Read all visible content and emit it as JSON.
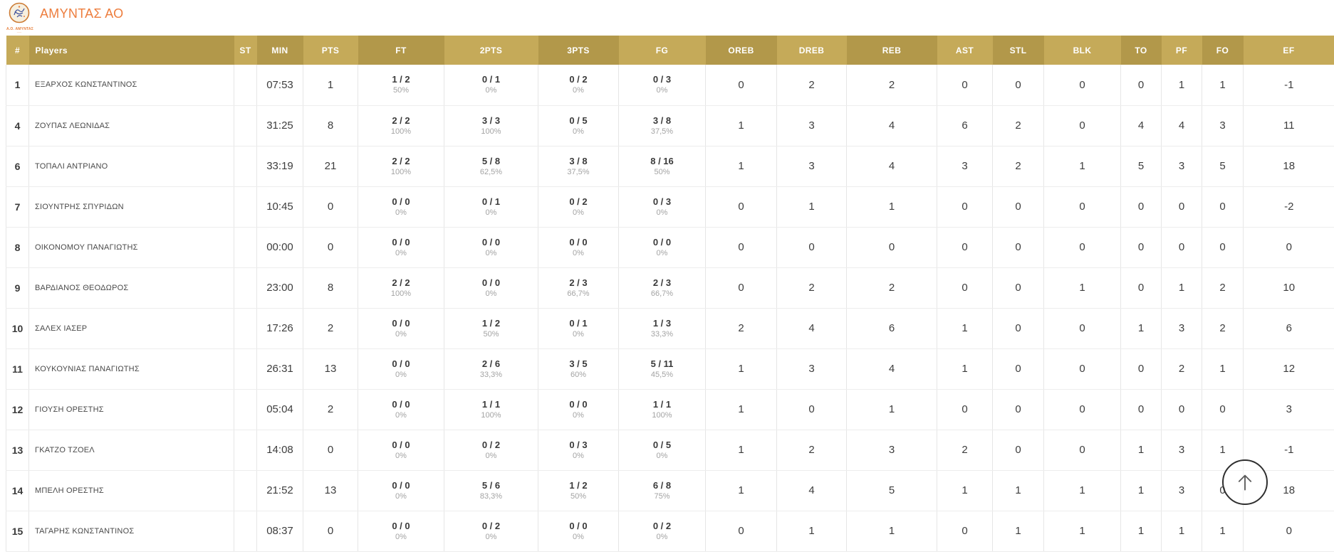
{
  "header": {
    "team_name": "ΑΜΥΝΤΑΣ ΑΟ",
    "logo_caption": "Α.Ο. ΑΜΥΝΤΑΣ"
  },
  "colors": {
    "accent_orange": "#ed7d3d",
    "header_gold_light": "#c5aa59",
    "header_gold_dark": "#b2984a",
    "body_text": "#3a3a3a",
    "pct_gray": "#a3a3a3"
  },
  "table": {
    "columns": [
      "#",
      "Players",
      "ST",
      "MIN",
      "PTS",
      "FT",
      "2PTS",
      "3PTS",
      "FG",
      "OREB",
      "DREB",
      "REB",
      "AST",
      "STL",
      "BLK",
      "TO",
      "PF",
      "FO",
      "EF"
    ],
    "rows": [
      {
        "num": "1",
        "name": "ΕΞΑΡΧΟΣ ΚΩΝΣΤΑΝΤΙΝΟΣ",
        "st": "",
        "min": "07:53",
        "pts": "1",
        "ft": [
          "1 / 2",
          "50%"
        ],
        "p2": [
          "0 / 1",
          "0%"
        ],
        "p3": [
          "0 / 2",
          "0%"
        ],
        "fg": [
          "0 / 3",
          "0%"
        ],
        "oreb": "0",
        "dreb": "2",
        "reb": "2",
        "ast": "0",
        "stl": "0",
        "blk": "0",
        "to": "0",
        "pf": "1",
        "fo": "1",
        "ef": "-1"
      },
      {
        "num": "4",
        "name": "ΖΟΥΠΑΣ ΛΕΩΝΙΔΑΣ",
        "st": "",
        "min": "31:25",
        "pts": "8",
        "ft": [
          "2 / 2",
          "100%"
        ],
        "p2": [
          "3 / 3",
          "100%"
        ],
        "p3": [
          "0 / 5",
          "0%"
        ],
        "fg": [
          "3 / 8",
          "37,5%"
        ],
        "oreb": "1",
        "dreb": "3",
        "reb": "4",
        "ast": "6",
        "stl": "2",
        "blk": "0",
        "to": "4",
        "pf": "4",
        "fo": "3",
        "ef": "11"
      },
      {
        "num": "6",
        "name": "ΤΟΠΑΛΙ ΑΝΤΡΙΑΝΟ",
        "st": "",
        "min": "33:19",
        "pts": "21",
        "ft": [
          "2 / 2",
          "100%"
        ],
        "p2": [
          "5 / 8",
          "62,5%"
        ],
        "p3": [
          "3 / 8",
          "37,5%"
        ],
        "fg": [
          "8 / 16",
          "50%"
        ],
        "oreb": "1",
        "dreb": "3",
        "reb": "4",
        "ast": "3",
        "stl": "2",
        "blk": "1",
        "to": "5",
        "pf": "3",
        "fo": "5",
        "ef": "18"
      },
      {
        "num": "7",
        "name": "ΣΙΟΥΝΤΡΗΣ ΣΠΥΡΙΔΩΝ",
        "st": "",
        "min": "10:45",
        "pts": "0",
        "ft": [
          "0 / 0",
          "0%"
        ],
        "p2": [
          "0 / 1",
          "0%"
        ],
        "p3": [
          "0 / 2",
          "0%"
        ],
        "fg": [
          "0 / 3",
          "0%"
        ],
        "oreb": "0",
        "dreb": "1",
        "reb": "1",
        "ast": "0",
        "stl": "0",
        "blk": "0",
        "to": "0",
        "pf": "0",
        "fo": "0",
        "ef": "-2"
      },
      {
        "num": "8",
        "name": "ΟΙΚΟΝΟΜΟΥ ΠΑΝΑΓΙΩΤΗΣ",
        "st": "",
        "min": "00:00",
        "pts": "0",
        "ft": [
          "0 / 0",
          "0%"
        ],
        "p2": [
          "0 / 0",
          "0%"
        ],
        "p3": [
          "0 / 0",
          "0%"
        ],
        "fg": [
          "0 / 0",
          "0%"
        ],
        "oreb": "0",
        "dreb": "0",
        "reb": "0",
        "ast": "0",
        "stl": "0",
        "blk": "0",
        "to": "0",
        "pf": "0",
        "fo": "0",
        "ef": "0"
      },
      {
        "num": "9",
        "name": "ΒΑΡΔΙΑΝΟΣ ΘΕΟΔΩΡΟΣ",
        "st": "",
        "min": "23:00",
        "pts": "8",
        "ft": [
          "2 / 2",
          "100%"
        ],
        "p2": [
          "0 / 0",
          "0%"
        ],
        "p3": [
          "2 / 3",
          "66,7%"
        ],
        "fg": [
          "2 / 3",
          "66,7%"
        ],
        "oreb": "0",
        "dreb": "2",
        "reb": "2",
        "ast": "0",
        "stl": "0",
        "blk": "1",
        "to": "0",
        "pf": "1",
        "fo": "2",
        "ef": "10"
      },
      {
        "num": "10",
        "name": "ΣΑΛΕΧ ΙΑΣΕΡ",
        "st": "",
        "min": "17:26",
        "pts": "2",
        "ft": [
          "0 / 0",
          "0%"
        ],
        "p2": [
          "1 / 2",
          "50%"
        ],
        "p3": [
          "0 / 1",
          "0%"
        ],
        "fg": [
          "1 / 3",
          "33,3%"
        ],
        "oreb": "2",
        "dreb": "4",
        "reb": "6",
        "ast": "1",
        "stl": "0",
        "blk": "0",
        "to": "1",
        "pf": "3",
        "fo": "2",
        "ef": "6"
      },
      {
        "num": "11",
        "name": "ΚΟΥΚΟΥΝΙΑΣ ΠΑΝΑΓΙΩΤΗΣ",
        "st": "",
        "min": "26:31",
        "pts": "13",
        "ft": [
          "0 / 0",
          "0%"
        ],
        "p2": [
          "2 / 6",
          "33,3%"
        ],
        "p3": [
          "3 / 5",
          "60%"
        ],
        "fg": [
          "5 / 11",
          "45,5%"
        ],
        "oreb": "1",
        "dreb": "3",
        "reb": "4",
        "ast": "1",
        "stl": "0",
        "blk": "0",
        "to": "0",
        "pf": "2",
        "fo": "1",
        "ef": "12"
      },
      {
        "num": "12",
        "name": "ΓΙΟΥΣΗ ΟΡΕΣΤΗΣ",
        "st": "",
        "min": "05:04",
        "pts": "2",
        "ft": [
          "0 / 0",
          "0%"
        ],
        "p2": [
          "1 / 1",
          "100%"
        ],
        "p3": [
          "0 / 0",
          "0%"
        ],
        "fg": [
          "1 / 1",
          "100%"
        ],
        "oreb": "1",
        "dreb": "0",
        "reb": "1",
        "ast": "0",
        "stl": "0",
        "blk": "0",
        "to": "0",
        "pf": "0",
        "fo": "0",
        "ef": "3"
      },
      {
        "num": "13",
        "name": "ΓΚΑΤΖΟ ΤΖΟΕΛ",
        "st": "",
        "min": "14:08",
        "pts": "0",
        "ft": [
          "0 / 0",
          "0%"
        ],
        "p2": [
          "0 / 2",
          "0%"
        ],
        "p3": [
          "0 / 3",
          "0%"
        ],
        "fg": [
          "0 / 5",
          "0%"
        ],
        "oreb": "1",
        "dreb": "2",
        "reb": "3",
        "ast": "2",
        "stl": "0",
        "blk": "0",
        "to": "1",
        "pf": "3",
        "fo": "1",
        "ef": "-1"
      },
      {
        "num": "14",
        "name": "ΜΠΕΛΗ ΟΡΕΣΤΗΣ",
        "st": "",
        "min": "21:52",
        "pts": "13",
        "ft": [
          "0 / 0",
          "0%"
        ],
        "p2": [
          "5 / 6",
          "83,3%"
        ],
        "p3": [
          "1 / 2",
          "50%"
        ],
        "fg": [
          "6 / 8",
          "75%"
        ],
        "oreb": "1",
        "dreb": "4",
        "reb": "5",
        "ast": "1",
        "stl": "1",
        "blk": "1",
        "to": "1",
        "pf": "3",
        "fo": "0",
        "ef": "18"
      },
      {
        "num": "15",
        "name": "ΤΑΓΑΡΗΣ ΚΩΝΣΤΑΝΤΙΝΟΣ",
        "st": "",
        "min": "08:37",
        "pts": "0",
        "ft": [
          "0 / 0",
          "0%"
        ],
        "p2": [
          "0 / 2",
          "0%"
        ],
        "p3": [
          "0 / 0",
          "0%"
        ],
        "fg": [
          "0 / 2",
          "0%"
        ],
        "oreb": "0",
        "dreb": "1",
        "reb": "1",
        "ast": "0",
        "stl": "1",
        "blk": "1",
        "to": "1",
        "pf": "1",
        "fo": "1",
        "ef": "0"
      }
    ]
  },
  "scroll_top_button": {
    "icon": "up-arrow"
  }
}
